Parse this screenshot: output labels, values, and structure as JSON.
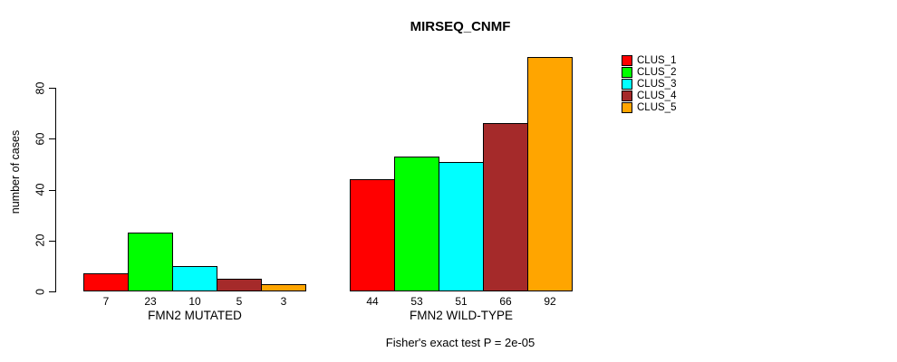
{
  "title": "MIRSEQ_CNMF",
  "footnote": "Fisher's exact test P = 2e-05",
  "yaxis": {
    "label": "number of cases",
    "ticks": [
      0,
      20,
      40,
      60,
      80
    ]
  },
  "chart_data": {
    "type": "bar",
    "title": "MIRSEQ_CNMF",
    "ylabel": "number of cases",
    "xlabel": "",
    "ylim": [
      0,
      92
    ],
    "yticks": [
      0,
      20,
      40,
      60,
      80
    ],
    "grid": false,
    "legend_position": "right-outside-top",
    "bar_outline_color": "#000000",
    "background_color": "#ffffff",
    "groups": [
      {
        "label": "FMN2 MUTATED",
        "values": [
          7,
          23,
          10,
          5,
          3
        ]
      },
      {
        "label": "FMN2 WILD-TYPE",
        "values": [
          44,
          53,
          51,
          66,
          92
        ]
      }
    ],
    "series": [
      {
        "name": "CLUS_1",
        "color": "#ff0000"
      },
      {
        "name": "CLUS_2",
        "color": "#00ff00"
      },
      {
        "name": "CLUS_3",
        "color": "#00ffff"
      },
      {
        "name": "CLUS_4",
        "color": "#a52a2a"
      },
      {
        "name": "CLUS_5",
        "color": "#ffa500"
      }
    ],
    "annotation": "Fisher's exact test P = 2e-05"
  }
}
